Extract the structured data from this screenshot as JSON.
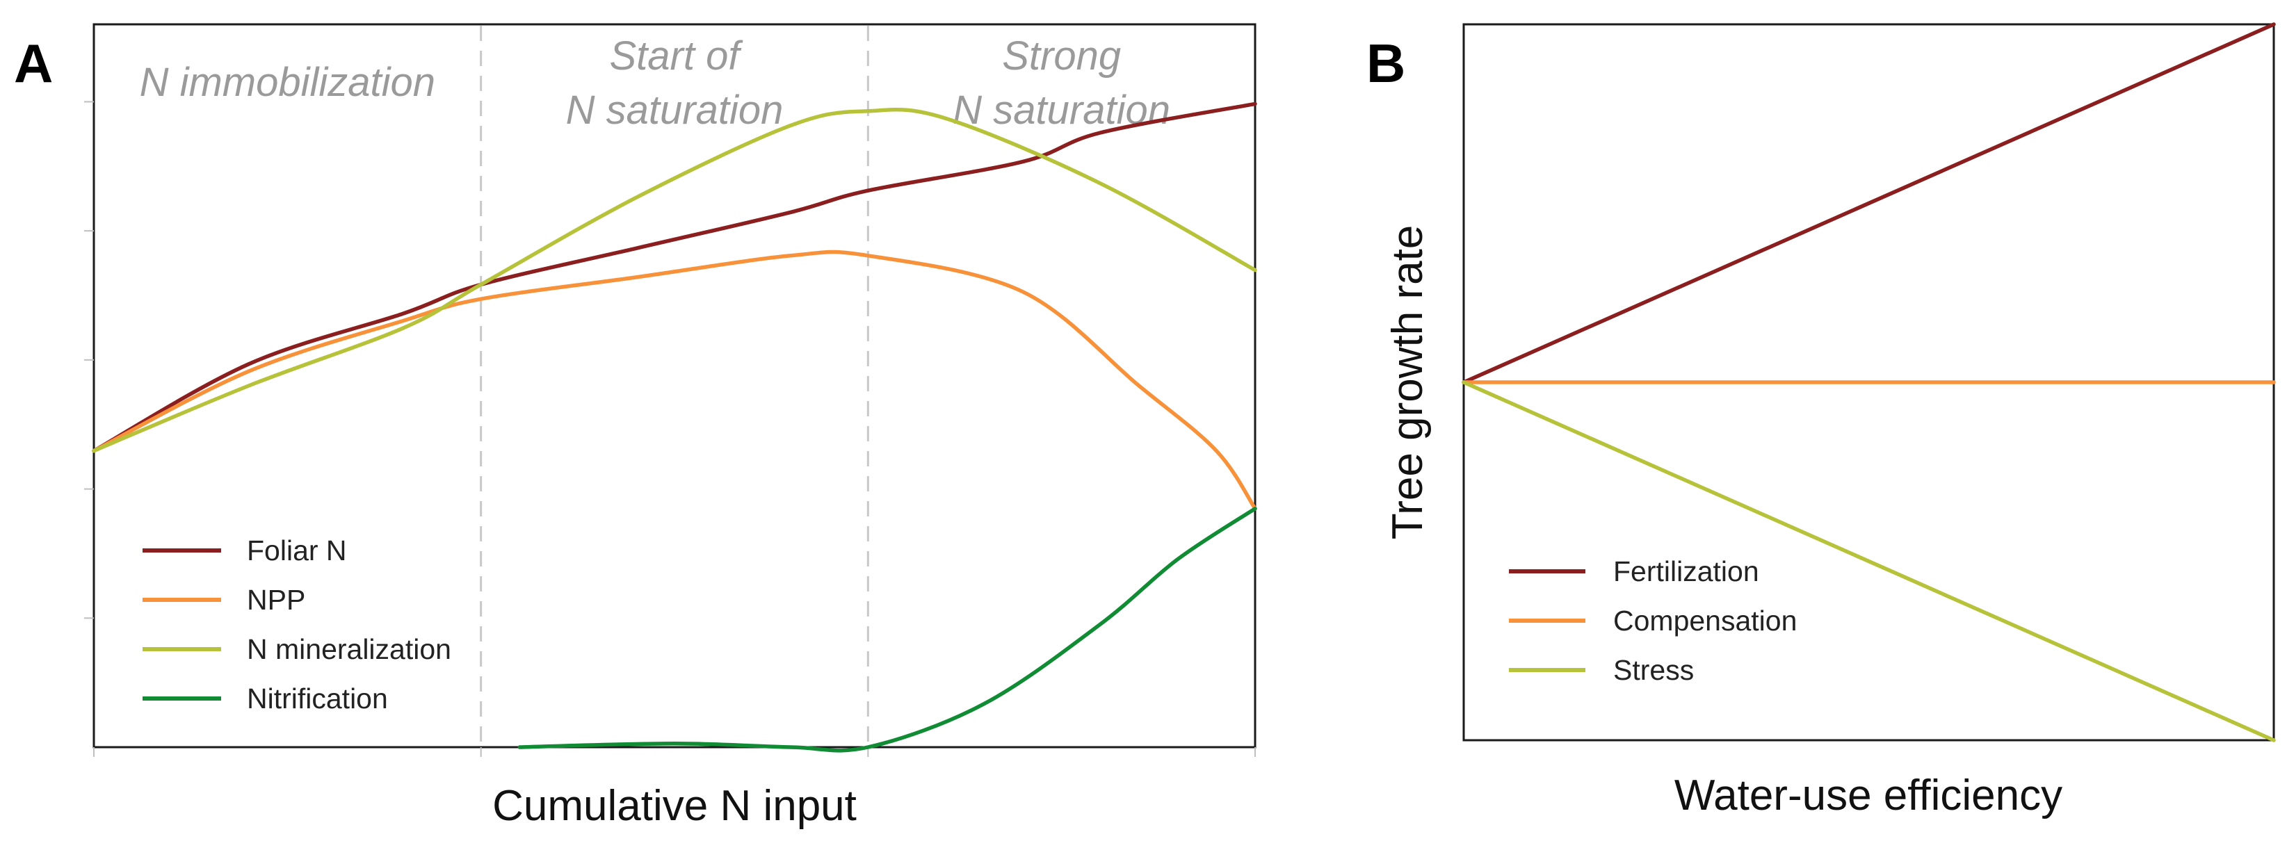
{
  "chart_data": [
    {
      "panel": "A",
      "type": "line",
      "xlabel": "Cumulative N input",
      "ylabel": "",
      "xlim": [
        0,
        3
      ],
      "ylim": [
        0,
        1
      ],
      "grid": false,
      "legend": "bottom-left",
      "phases": [
        {
          "lines": [
            "N immobilization"
          ],
          "x_center": 0.5
        },
        {
          "lines": [
            "Start of",
            "N saturation"
          ],
          "x_center": 1.5
        },
        {
          "lines": [
            "Strong",
            "N saturation"
          ],
          "x_center": 2.5
        }
      ],
      "dividers_x": [
        1,
        2
      ],
      "series": [
        {
          "name": "Foliar N",
          "color": "#8b1e1e",
          "x": [
            0,
            0.4,
            0.8,
            1.0,
            1.4,
            1.8,
            2.0,
            2.4,
            2.6,
            3.0
          ],
          "y": [
            0.41,
            0.53,
            0.6,
            0.64,
            0.69,
            0.74,
            0.77,
            0.81,
            0.85,
            0.89
          ]
        },
        {
          "name": "NPP",
          "color": "#f7923a",
          "x": [
            0,
            0.4,
            0.8,
            1.0,
            1.4,
            1.8,
            2.0,
            2.4,
            2.7,
            2.9,
            3.0
          ],
          "y": [
            0.41,
            0.52,
            0.59,
            0.62,
            0.65,
            0.68,
            0.68,
            0.63,
            0.5,
            0.41,
            0.33
          ]
        },
        {
          "name": "N mineralization",
          "color": "#b6c33a",
          "x": [
            0,
            0.4,
            0.8,
            1.0,
            1.4,
            1.8,
            2.0,
            2.2,
            2.6,
            3.0
          ],
          "y": [
            0.41,
            0.5,
            0.58,
            0.64,
            0.76,
            0.86,
            0.88,
            0.87,
            0.78,
            0.66
          ]
        },
        {
          "name": "Nitrification",
          "color": "#118c35",
          "x": [
            1.1,
            1.5,
            1.8,
            2.0,
            2.3,
            2.6,
            2.8,
            3.0
          ],
          "y": [
            0.0,
            0.005,
            0.0,
            0.0,
            0.06,
            0.17,
            0.26,
            0.33
          ]
        }
      ]
    },
    {
      "panel": "B",
      "type": "line",
      "xlabel": "Water-use efficiency",
      "ylabel": "Tree growth rate",
      "xlim": [
        0,
        1
      ],
      "ylim": [
        -1,
        1
      ],
      "grid": false,
      "legend": "bottom-left",
      "series": [
        {
          "name": "Fertilization",
          "color": "#8b1e1e",
          "x": [
            0,
            1
          ],
          "y": [
            0,
            1
          ]
        },
        {
          "name": "Compensation",
          "color": "#f7923a",
          "x": [
            0,
            1
          ],
          "y": [
            0,
            0
          ]
        },
        {
          "name": "Stress",
          "color": "#b6c33a",
          "x": [
            0,
            1
          ],
          "y": [
            0,
            -1
          ]
        }
      ]
    }
  ]
}
